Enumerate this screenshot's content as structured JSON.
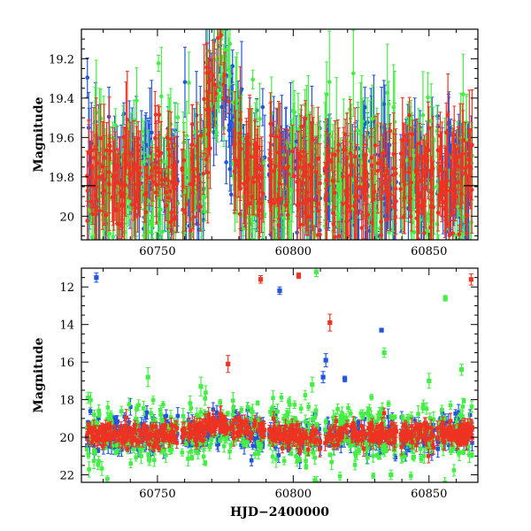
{
  "chart_data": [
    {
      "type": "scatter",
      "panel": "top",
      "title": "",
      "xlabel": "",
      "ylabel": "Magnitude",
      "xlim": [
        60722,
        60868
      ],
      "ylim": [
        20.12,
        19.05
      ],
      "y_inverted": true,
      "grid": false,
      "xticks": [
        60750,
        60800,
        60850
      ],
      "yticks": [
        19.2,
        19.4,
        19.6,
        19.8,
        20
      ],
      "ytick_labels": [
        "19.2",
        "19.4",
        "19.6",
        "19.8",
        "20"
      ],
      "reference_lines": [
        {
          "y": 19.845,
          "color": "#000000",
          "note": "horizontal segments at left and right edges"
        }
      ],
      "series": [
        {
          "color": "#2255dd",
          "marker": "circle",
          "error_bars": true,
          "y_center": 19.83,
          "y_spread": 0.16,
          "x_start": 60724,
          "x_end": 60866
        },
        {
          "color": "#44ee44",
          "marker": "circle",
          "error_bars": true,
          "y_center": 19.82,
          "y_spread": 0.18,
          "x_start": 60724,
          "x_end": 60866
        },
        {
          "color": "#ee3322",
          "marker": "circle",
          "error_bars": true,
          "y_center": 19.82,
          "y_spread": 0.14,
          "x_start": 60724,
          "x_end": 60866
        }
      ],
      "features": [
        {
          "description": "brightening bump",
          "x_peak": 60773,
          "y_peak": 19.22
        }
      ]
    },
    {
      "type": "scatter",
      "panel": "bottom",
      "title": "",
      "xlabel": "HJD−2400000",
      "ylabel": "Magnitude",
      "xlim": [
        60722,
        60868
      ],
      "ylim": [
        22.4,
        11.0
      ],
      "y_inverted": true,
      "grid": false,
      "xticks": [
        60750,
        60800,
        60850
      ],
      "yticks": [
        12,
        14,
        16,
        18,
        20,
        22
      ],
      "ytick_labels": [
        "12",
        "14",
        "16",
        "18",
        "20",
        "22"
      ],
      "series": [
        {
          "color": "#2255dd",
          "marker": "square",
          "error_bars": true,
          "y_center": 19.9,
          "y_spread": 0.45,
          "x_start": 60724,
          "x_end": 60866
        },
        {
          "color": "#44ee44",
          "marker": "square",
          "error_bars": true,
          "y_center": 19.9,
          "y_spread": 0.8,
          "x_start": 60724,
          "x_end": 60866
        },
        {
          "color": "#ee3322",
          "marker": "square",
          "error_bars": true,
          "y_center": 19.85,
          "y_spread": 0.3,
          "x_start": 60724,
          "x_end": 60866
        }
      ],
      "outliers": [
        {
          "x": 60727.5,
          "y": 11.5,
          "err": 0.25,
          "color": "#2255dd"
        },
        {
          "x": 60795.0,
          "y": 12.2,
          "err": 0.2,
          "color": "#2255dd"
        },
        {
          "x": 60812.0,
          "y": 15.9,
          "err": 0.35,
          "color": "#2255dd"
        },
        {
          "x": 60819.0,
          "y": 16.9,
          "err": 0.15,
          "color": "#2255dd"
        },
        {
          "x": 60832.5,
          "y": 14.3,
          "err": 0.1,
          "color": "#2255dd"
        },
        {
          "x": 60811.0,
          "y": 16.8,
          "err": 0.3,
          "color": "#2255dd"
        },
        {
          "x": 60788.0,
          "y": 11.6,
          "err": 0.2,
          "color": "#ee3322"
        },
        {
          "x": 60802.0,
          "y": 11.4,
          "err": 0.15,
          "color": "#ee3322"
        },
        {
          "x": 60813.5,
          "y": 13.9,
          "err": 0.45,
          "color": "#ee3322"
        },
        {
          "x": 60776.0,
          "y": 16.1,
          "err": 0.45,
          "color": "#ee3322"
        },
        {
          "x": 60865.5,
          "y": 11.6,
          "err": 0.3,
          "color": "#ee3322"
        },
        {
          "x": 60808.5,
          "y": 11.2,
          "err": 0.25,
          "color": "#44ee44"
        },
        {
          "x": 60856.0,
          "y": 12.6,
          "err": 0.15,
          "color": "#44ee44"
        },
        {
          "x": 60833.5,
          "y": 15.5,
          "err": 0.25,
          "color": "#44ee44"
        },
        {
          "x": 60746.5,
          "y": 16.8,
          "err": 0.5,
          "color": "#44ee44"
        },
        {
          "x": 60766.0,
          "y": 17.3,
          "err": 0.5,
          "color": "#44ee44"
        },
        {
          "x": 60807.0,
          "y": 17.2,
          "err": 0.4,
          "color": "#44ee44"
        },
        {
          "x": 60724.5,
          "y": 17.9,
          "err": 0.3,
          "color": "#44ee44"
        },
        {
          "x": 60850.0,
          "y": 17.0,
          "err": 0.4,
          "color": "#44ee44"
        },
        {
          "x": 60862.0,
          "y": 16.4,
          "err": 0.3,
          "color": "#44ee44"
        },
        {
          "x": 60808.0,
          "y": 22.3,
          "err": 0.2,
          "color": "#44ee44"
        },
        {
          "x": 60836.0,
          "y": 22.0,
          "err": 0.25,
          "color": "#44ee44"
        },
        {
          "x": 60747.0,
          "y": 21.2,
          "err": 0.3,
          "color": "#44ee44"
        }
      ]
    }
  ]
}
